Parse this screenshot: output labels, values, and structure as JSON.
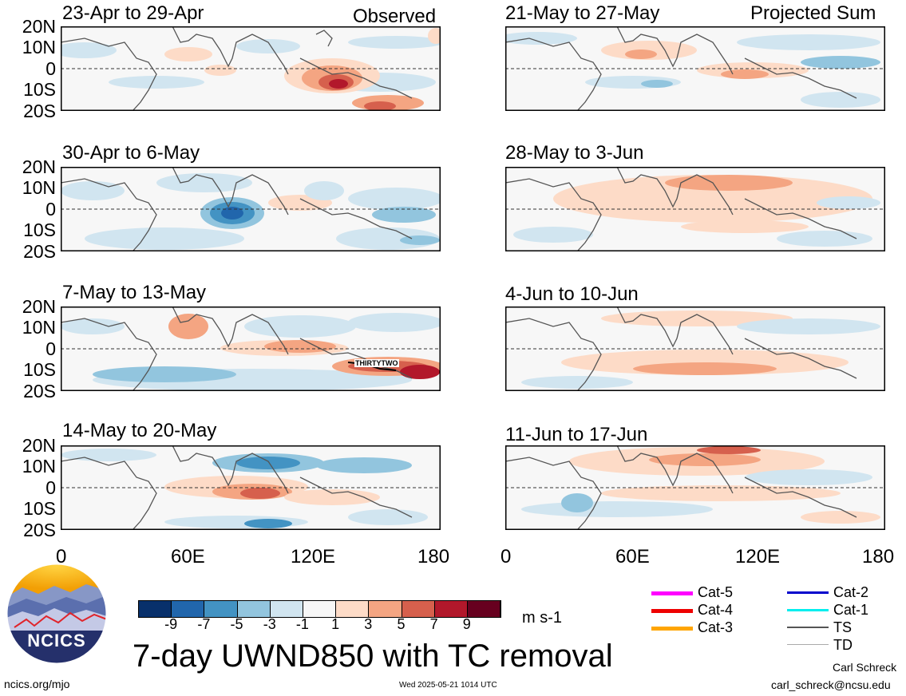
{
  "panels_left": [
    {
      "title": "23-Apr to 29-Apr",
      "tag": "Observed"
    },
    {
      "title": "30-Apr to 6-May",
      "tag": ""
    },
    {
      "title": "7-May to 13-May",
      "tag": "",
      "storm_label": "THIRTYTWO"
    },
    {
      "title": "14-May to 20-May",
      "tag": ""
    }
  ],
  "panels_right": [
    {
      "title": "21-May to 27-May",
      "tag": "Projected Sum"
    },
    {
      "title": "28-May to 3-Jun",
      "tag": ""
    },
    {
      "title": "4-Jun to 10-Jun",
      "tag": ""
    },
    {
      "title": "11-Jun to 17-Jun",
      "tag": ""
    }
  ],
  "lat_labels": [
    "20N",
    "10N",
    "0",
    "10S",
    "20S"
  ],
  "lon_labels": [
    "0",
    "60E",
    "120E",
    "180"
  ],
  "colorbar": {
    "labels": [
      "-9",
      "-7",
      "-5",
      "-3",
      "-1",
      "1",
      "3",
      "5",
      "7",
      "9"
    ],
    "colors": [
      "#08306b",
      "#2166ac",
      "#4393c3",
      "#92c5de",
      "#d1e5f0",
      "#f7f7f7",
      "#fddbc7",
      "#f4a582",
      "#d6604d",
      "#b2182b",
      "#67001f"
    ],
    "units": "m s-1"
  },
  "main_title": "7-day UWND850 with TC removal",
  "logo_text": "NCICS",
  "legend": [
    {
      "label": "Cat-5",
      "color": "#ff00ff"
    },
    {
      "label": "Cat-4",
      "color": "#ee0000"
    },
    {
      "label": "Cat-3",
      "color": "#ffa500"
    },
    {
      "label": "Cat-2",
      "color": "#0000cc"
    },
    {
      "label": "Cat-1",
      "color": "#00eeee"
    },
    {
      "label": "TS",
      "color": "#555555"
    },
    {
      "label": "TD",
      "color": "#aaaaaa"
    }
  ],
  "footer": {
    "left": "ncics.org/mjo",
    "center": "Wed 2025-05-21 1014 UTC",
    "author": "Carl Schreck",
    "email": "carl_schreck@ncsu.edu"
  }
}
